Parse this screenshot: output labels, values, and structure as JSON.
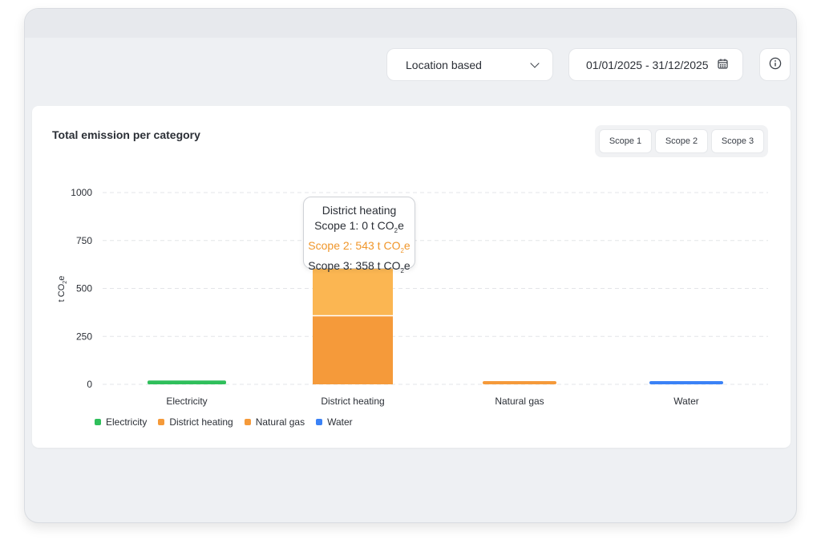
{
  "toolbar": {
    "method_label": "Location based",
    "date_range": "01/01/2025 - 31/12/2025"
  },
  "card": {
    "title": "Total emission per category",
    "scope_buttons": [
      "Scope 1",
      "Scope 2",
      "Scope 3"
    ]
  },
  "tooltip": {
    "title": "District heating",
    "scope1_prefix": "Scope 1: 0 t CO",
    "scope2_prefix": "Scope 2: 543 t CO",
    "scope3_prefix": "Scope 3: 358 t CO",
    "sub": "2",
    "suffix": "e"
  },
  "chart_data": {
    "type": "bar",
    "stacked": true,
    "ylabel_main": "t CO",
    "ylabel_sub": "2",
    "ylabel_end": "e",
    "ylim": [
      0,
      1000
    ],
    "yticks": [
      0,
      250,
      500,
      750,
      1000
    ],
    "categories": [
      "Electricity",
      "District heating",
      "Natural gas",
      "Water"
    ],
    "series": [
      {
        "name": "Scope 1",
        "values": [
          0,
          0,
          8,
          0
        ]
      },
      {
        "name": "Scope 2",
        "values": [
          20,
          543,
          0,
          6
        ]
      },
      {
        "name": "Scope 3",
        "values": [
          0,
          358,
          0,
          0
        ]
      }
    ],
    "legend": [
      {
        "name": "Electricity",
        "color": "#2fbf5b"
      },
      {
        "name": "District heating",
        "color": "#f59a3a"
      },
      {
        "name": "Natural gas",
        "color": "#f59a3a"
      },
      {
        "name": "Water",
        "color": "#3b82f6"
      }
    ],
    "colors": {
      "Electricity": "#2fbf5b",
      "District heating_lower": "#f59a3a",
      "District heating_upper": "#fbb652",
      "Natural gas": "#f59a3a",
      "Water": "#3b82f6"
    },
    "grid": true,
    "legend_position": "bottom-left"
  }
}
